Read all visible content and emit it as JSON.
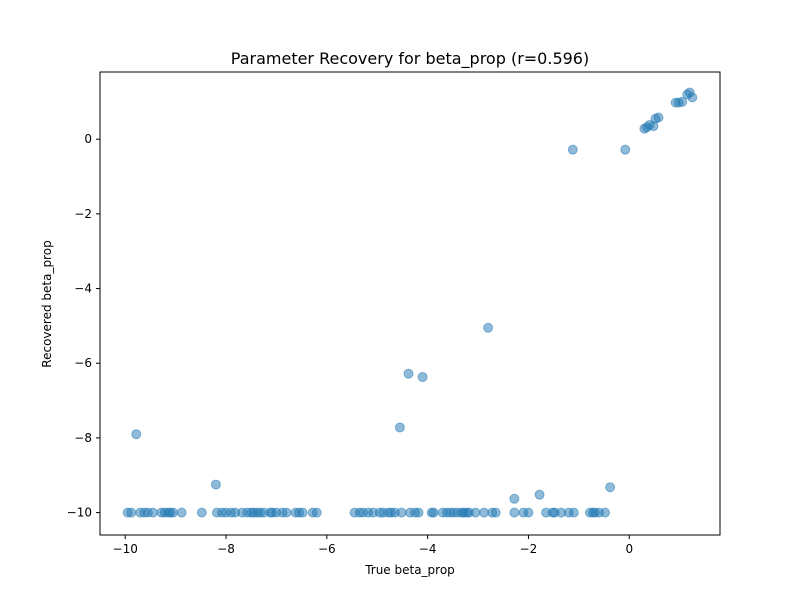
{
  "chart_data": {
    "type": "scatter",
    "title": "Parameter Recovery for beta_prop (r=0.596)",
    "xlabel": "True beta_prop",
    "ylabel": "Recovered beta_prop",
    "xlim": [
      -10.5,
      1.8
    ],
    "ylim": [
      -10.6,
      1.8
    ],
    "xticks": [
      -10,
      -8,
      -6,
      -4,
      -2,
      0
    ],
    "xtick_labels": [
      "−10",
      "−8",
      "−6",
      "−4",
      "−2",
      "0"
    ],
    "yticks": [
      -10,
      -8,
      -6,
      -4,
      -2,
      0
    ],
    "ytick_labels": [
      "−10",
      "−8",
      "−6",
      "−4",
      "−2",
      "0"
    ],
    "grid": false,
    "color": "#1f77b4",
    "points": [
      [
        -9.95,
        -10
      ],
      [
        -9.88,
        -10
      ],
      [
        -9.78,
        -7.9
      ],
      [
        -9.7,
        -10
      ],
      [
        -9.62,
        -10
      ],
      [
        -9.55,
        -10
      ],
      [
        -9.45,
        -10
      ],
      [
        -9.28,
        -10
      ],
      [
        -9.22,
        -10
      ],
      [
        -9.15,
        -10
      ],
      [
        -9.1,
        -10
      ],
      [
        -9.05,
        -10
      ],
      [
        -8.88,
        -10
      ],
      [
        -8.48,
        -10
      ],
      [
        -8.2,
        -9.25
      ],
      [
        -8.18,
        -10
      ],
      [
        -8.08,
        -10
      ],
      [
        -8.0,
        -10
      ],
      [
        -7.9,
        -10
      ],
      [
        -7.82,
        -10
      ],
      [
        -7.68,
        -10
      ],
      [
        -7.58,
        -10
      ],
      [
        -7.5,
        -10
      ],
      [
        -7.45,
        -10
      ],
      [
        -7.38,
        -10
      ],
      [
        -7.32,
        -10
      ],
      [
        -7.25,
        -10
      ],
      [
        -7.12,
        -10
      ],
      [
        -7.08,
        -10
      ],
      [
        -7.0,
        -10
      ],
      [
        -6.88,
        -10
      ],
      [
        -6.8,
        -10
      ],
      [
        -6.62,
        -10
      ],
      [
        -6.55,
        -10
      ],
      [
        -6.48,
        -10
      ],
      [
        -6.28,
        -10
      ],
      [
        -6.2,
        -10
      ],
      [
        -5.45,
        -10
      ],
      [
        -5.35,
        -10
      ],
      [
        -5.28,
        -10
      ],
      [
        -5.18,
        -10
      ],
      [
        -5.08,
        -10
      ],
      [
        -4.95,
        -10
      ],
      [
        -4.88,
        -10
      ],
      [
        -4.78,
        -10
      ],
      [
        -4.72,
        -10
      ],
      [
        -4.65,
        -10
      ],
      [
        -4.55,
        -7.72
      ],
      [
        -4.52,
        -10
      ],
      [
        -4.38,
        -6.28
      ],
      [
        -4.35,
        -10
      ],
      [
        -4.25,
        -10
      ],
      [
        -4.18,
        -10
      ],
      [
        -4.1,
        -6.37
      ],
      [
        -3.92,
        -10
      ],
      [
        -3.88,
        -10
      ],
      [
        -3.7,
        -10
      ],
      [
        -3.62,
        -10
      ],
      [
        -3.55,
        -10
      ],
      [
        -3.48,
        -10
      ],
      [
        -3.4,
        -10
      ],
      [
        -3.32,
        -10
      ],
      [
        -3.28,
        -10
      ],
      [
        -3.22,
        -10
      ],
      [
        -3.18,
        -10
      ],
      [
        -3.05,
        -10
      ],
      [
        -2.88,
        -10
      ],
      [
        -2.8,
        -5.05
      ],
      [
        -2.72,
        -10
      ],
      [
        -2.65,
        -10
      ],
      [
        -2.28,
        -9.63
      ],
      [
        -2.28,
        -10
      ],
      [
        -2.1,
        -10
      ],
      [
        -2.0,
        -10
      ],
      [
        -1.78,
        -9.52
      ],
      [
        -1.65,
        -10
      ],
      [
        -1.52,
        -10
      ],
      [
        -1.48,
        -10
      ],
      [
        -1.35,
        -10
      ],
      [
        -1.2,
        -10
      ],
      [
        -1.12,
        -0.28
      ],
      [
        -1.1,
        -10
      ],
      [
        -0.78,
        -10
      ],
      [
        -0.72,
        -10
      ],
      [
        -0.68,
        -10
      ],
      [
        -0.6,
        -10
      ],
      [
        -0.48,
        -10
      ],
      [
        -0.38,
        -9.32
      ],
      [
        -0.08,
        -0.28
      ],
      [
        0.3,
        0.28
      ],
      [
        0.35,
        0.32
      ],
      [
        0.4,
        0.38
      ],
      [
        0.48,
        0.35
      ],
      [
        0.52,
        0.55
      ],
      [
        0.58,
        0.58
      ],
      [
        0.92,
        0.98
      ],
      [
        0.98,
        0.98
      ],
      [
        1.05,
        1.0
      ],
      [
        1.15,
        1.2
      ],
      [
        1.2,
        1.25
      ],
      [
        1.25,
        1.12
      ]
    ]
  }
}
